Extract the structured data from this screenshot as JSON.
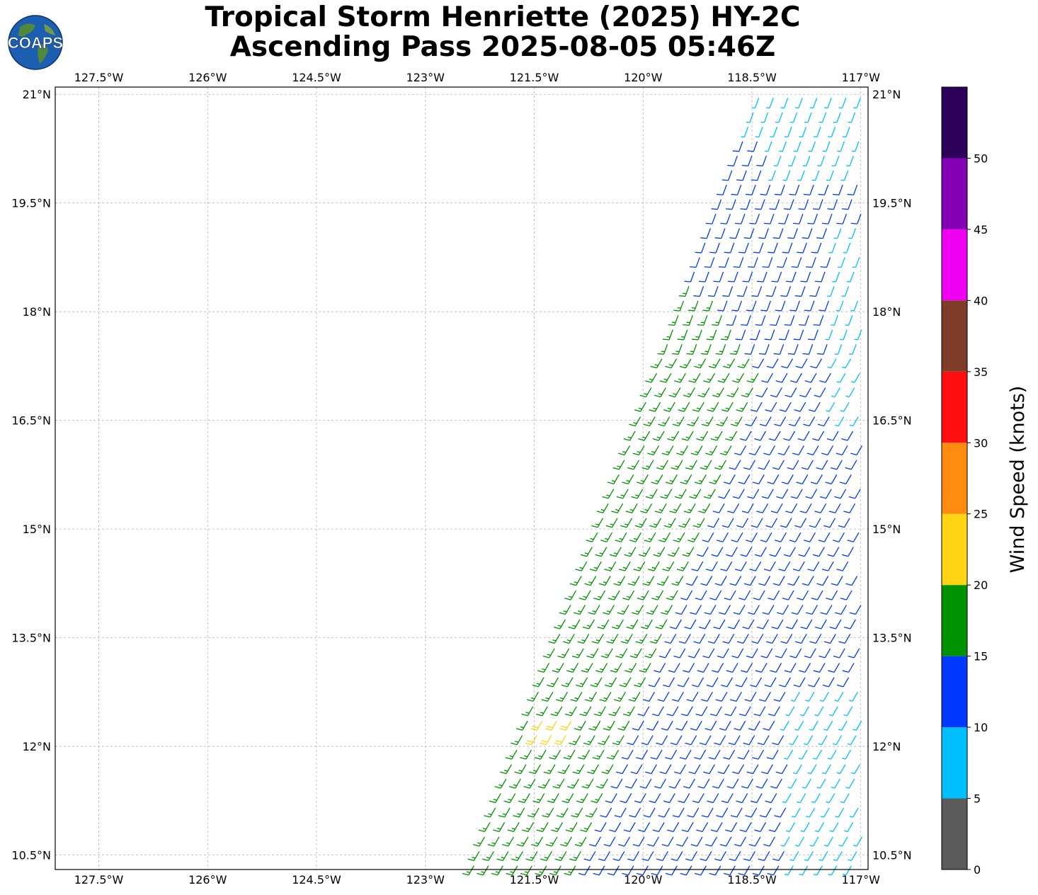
{
  "header": {
    "title_line1": "Tropical Storm Henriette (2025) HY-2C",
    "title_line2": "Ascending Pass 2025-08-05 05:46Z",
    "logo_text": "COAPS"
  },
  "chart_data": {
    "type": "wind-barb map",
    "title": "Tropical Storm Henriette (2025) HY-2C Ascending Pass 2025-08-05 05:46Z",
    "x_axis": {
      "unit": "longitude",
      "range": [
        -128.1,
        -116.9
      ],
      "ticks": [
        -127.5,
        -126,
        -124.5,
        -123,
        -121.5,
        -120,
        -118.5,
        -117
      ],
      "tick_labels": [
        "127.5°W",
        "126°W",
        "124.5°W",
        "123°W",
        "121.5°W",
        "120°W",
        "118.5°W",
        "117°W"
      ]
    },
    "y_axis": {
      "unit": "latitude",
      "range": [
        10.3,
        21.1
      ],
      "ticks": [
        10.5,
        12,
        13.5,
        15,
        16.5,
        18,
        19.5,
        21
      ],
      "tick_labels": [
        "10.5°N",
        "12°N",
        "13.5°N",
        "15°N",
        "16.5°N",
        "18°N",
        "19.5°N",
        "21°N"
      ]
    },
    "grid": true,
    "colorbar": {
      "label": "Wind Speed (knots)",
      "bins": [
        {
          "min": 0,
          "max": 5,
          "color": "#5a5a5a"
        },
        {
          "min": 5,
          "max": 10,
          "color": "#00bfff"
        },
        {
          "min": 10,
          "max": 15,
          "color": "#0038ff"
        },
        {
          "min": 15,
          "max": 20,
          "color": "#009200"
        },
        {
          "min": 20,
          "max": 25,
          "color": "#ffd414"
        },
        {
          "min": 25,
          "max": 30,
          "color": "#ff8c0f"
        },
        {
          "min": 30,
          "max": 35,
          "color": "#ff0f0f"
        },
        {
          "min": 35,
          "max": 40,
          "color": "#7f3c28"
        },
        {
          "min": 40,
          "max": 45,
          "color": "#f000f0"
        },
        {
          "min": 45,
          "max": 50,
          "color": "#8400b4"
        },
        {
          "min": 50,
          "max": 55,
          "color": "#2d005a"
        }
      ],
      "tick_labels": [
        "0",
        "5",
        "10",
        "15",
        "20",
        "25",
        "30",
        "35",
        "40",
        "45",
        "50"
      ]
    },
    "swath": {
      "description_points_lonlat": [
        [
          -122.4,
          10.3
        ],
        [
          -116.9,
          10.3
        ],
        [
          -116.9,
          21.1
        ],
        [
          -118.4,
          21.1
        ]
      ]
    },
    "barb_regions": [
      {
        "label": "5-10 kt",
        "color": "#00bfff",
        "area": "northeast corner and southeast edge of swath"
      },
      {
        "label": "10-15 kt",
        "color": "#0038ff",
        "area": "central and eastern swath"
      },
      {
        "label": "15-20 kt",
        "color": "#009200",
        "area": "western edge of swath"
      },
      {
        "label": "20-25 kt",
        "color": "#ffd414",
        "area": "near 12.2°N 121.2°W"
      }
    ]
  }
}
